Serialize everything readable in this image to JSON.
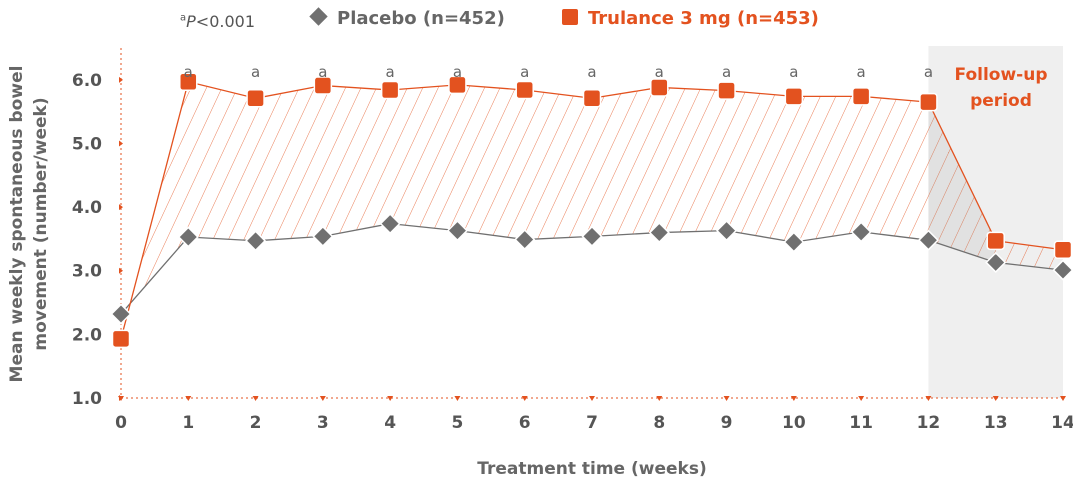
{
  "footnote": {
    "sup": "a",
    "p": "P",
    "text": "<0.001"
  },
  "legend": {
    "placebo": "Placebo (n=452)",
    "trulance": "Trulance 3 mg (n=453)"
  },
  "followup_label": [
    "Follow-up",
    "period"
  ],
  "sig_marker": "a",
  "chart_data": {
    "type": "line",
    "x": [
      0,
      1,
      2,
      3,
      4,
      5,
      6,
      7,
      8,
      9,
      10,
      11,
      12,
      13,
      14
    ],
    "x_tick_labels": [
      "0",
      "1",
      "2",
      "3",
      "4",
      "5",
      "6",
      "7",
      "8",
      "9",
      "10",
      "11",
      "12",
      "13",
      "14"
    ],
    "y_tick_labels": [
      "1.0",
      "2.0",
      "3.0",
      "4.0",
      "5.0",
      "6.0"
    ],
    "y_ticks": [
      1.0,
      2.0,
      3.0,
      4.0,
      5.0,
      6.0
    ],
    "ylim": [
      1.0,
      6.5
    ],
    "xlim": [
      0,
      14
    ],
    "xlabel": "Treatment time (weeks)",
    "ylabel": [
      "Mean weekly spontaneous bowel",
      "movement (number/week)"
    ],
    "shaded_region": {
      "from": 12,
      "to": 14,
      "color": "#EFEFEF"
    },
    "series": [
      {
        "name": "Placebo (n=452)",
        "marker": "diamond",
        "color": "#707070",
        "values": [
          2.32,
          3.53,
          3.47,
          3.54,
          3.74,
          3.63,
          3.49,
          3.54,
          3.6,
          3.63,
          3.45,
          3.61,
          3.48,
          3.13,
          3.01
        ]
      },
      {
        "name": "Trulance 3 mg (n=453)",
        "marker": "square",
        "color": "#E3521F",
        "values": [
          1.93,
          5.97,
          5.71,
          5.91,
          5.84,
          5.92,
          5.84,
          5.71,
          5.88,
          5.83,
          5.74,
          5.74,
          5.65,
          3.47,
          3.33
        ]
      }
    ],
    "significance_weeks": [
      1,
      2,
      3,
      4,
      5,
      6,
      7,
      8,
      9,
      10,
      11,
      12
    ]
  }
}
